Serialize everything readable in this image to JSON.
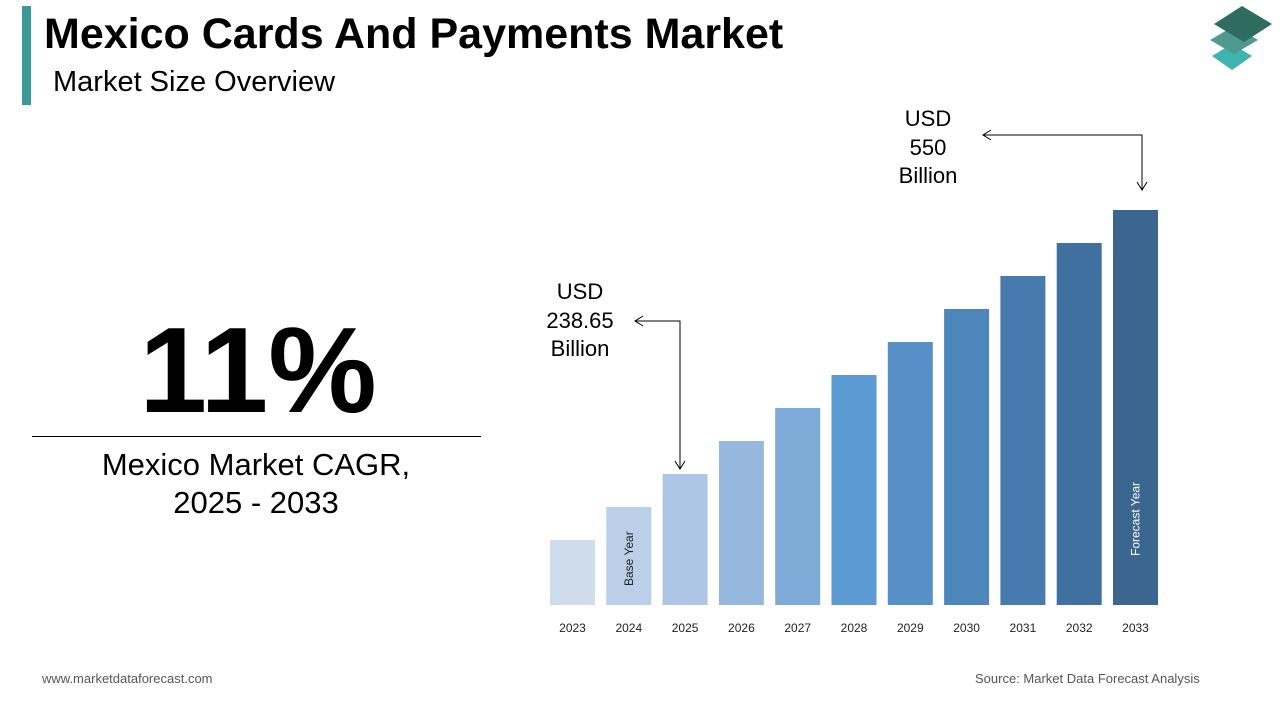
{
  "header": {
    "title": "Mexico Cards And Payments Market",
    "subtitle": "Market Size Overview",
    "accent_color": "#3a9a9a"
  },
  "logo": {
    "icon": "stacked-layers-icon",
    "colors": [
      "#2e6b60",
      "#4e9a90",
      "#3fb3b0"
    ]
  },
  "kpi": {
    "value": "11%",
    "label_line1": "Mexico Market CAGR,",
    "label_line2": "2025 - 2033"
  },
  "chart_data": {
    "type": "bar",
    "title": "",
    "xlabel": "",
    "ylabel": "",
    "grid": false,
    "categories": [
      "2023",
      "2024",
      "2025",
      "2026",
      "2027",
      "2028",
      "2029",
      "2030",
      "2031",
      "2032",
      "2033"
    ],
    "values": [
      null,
      null,
      238.65,
      null,
      null,
      null,
      null,
      null,
      null,
      null,
      550
    ],
    "unit": "USD Billion",
    "colors": [
      "#cfdcec",
      "#bccfe8",
      "#adc6e5",
      "#97b8de",
      "#7eaad8",
      "#5b9ad2",
      "#5690c6",
      "#4d86bb",
      "#477bae",
      "#3f70a0",
      "#3a6690"
    ],
    "bar_labels": {
      "2024": "Base Year",
      "2033": "Forecast Year"
    },
    "annotations": [
      {
        "year": "2025",
        "line1": "USD",
        "line2": "238.65",
        "line3": "Billion"
      },
      {
        "year": "2033",
        "line1": "USD",
        "line2": "550",
        "line3": "Billion"
      }
    ]
  },
  "footer": {
    "website": "www.marketdataforecast.com",
    "source": "Source: Market Data Forecast Analysis"
  }
}
